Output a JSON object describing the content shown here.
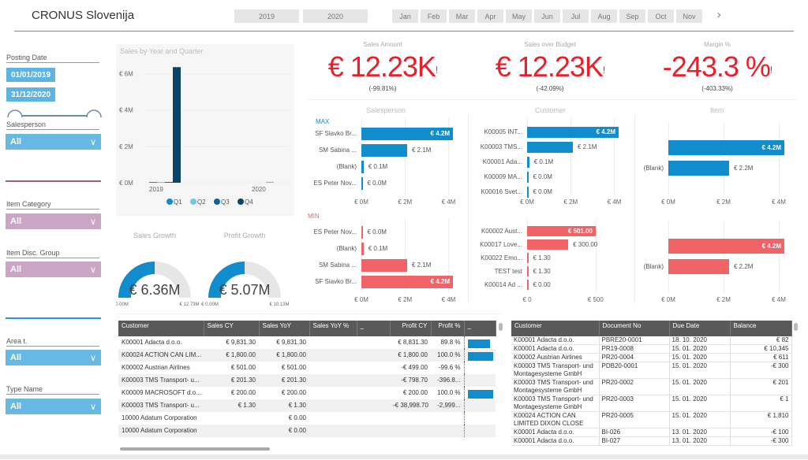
{
  "header": {
    "title": "CRONUS Slovenija",
    "years": [
      "2019",
      "2020"
    ],
    "months": [
      "Jan",
      "Feb",
      "Mar",
      "Apr",
      "May",
      "Jun",
      "Jul",
      "Aug",
      "Sep",
      "Oct",
      "Nov"
    ],
    "next_icon": "chevron-right-icon"
  },
  "filters": {
    "posting_date_label": "Posting Date",
    "date_from": "01/01/2019",
    "date_to": "31/12/2020",
    "salesperson_label": "Salesperson",
    "salesperson_value": "All",
    "item_category_label": "Item Category",
    "item_category_value": "All",
    "item_disc_group_label": "Item Disc. Group",
    "item_disc_group_value": "All",
    "area_label": "Area t.",
    "area_value": "All",
    "type_name_label": "Type Name",
    "type_name_value": "All"
  },
  "colors": {
    "accent_blue": "#118dce",
    "accent_red": "#f06468",
    "kpi_red": "#e8202a",
    "slicer_blue": "#66b9e2",
    "slicer_pink": "#cba5c4"
  },
  "chart_data": [
    {
      "type": "bar",
      "title": "Sales by Year and Quarter",
      "categories": [
        "2019",
        "2020"
      ],
      "series": [
        {
          "name": "Q1",
          "values": [
            0.03,
            0.0
          ]
        },
        {
          "name": "Q2",
          "values": [
            0.03,
            0.05
          ]
        },
        {
          "name": "Q3",
          "values": [
            0.03,
            0.0
          ]
        },
        {
          "name": "Q4",
          "values": [
            6.36,
            0.0
          ]
        }
      ],
      "yticks": [
        "€ 0M",
        "€ 2M",
        "€ 4M",
        "€ 6M"
      ],
      "ylim": [
        0,
        6.5
      ],
      "legend": [
        "Q1",
        "Q2",
        "Q3",
        "Q4"
      ],
      "legend_position": "bottom"
    },
    {
      "type": "bar",
      "title": "Salesperson",
      "subtitle": "MAX",
      "categories": [
        "SF Slavko Br...",
        "SM Sabina ...",
        "(Blank)",
        "ES Peter Nov..."
      ],
      "values": [
        4.2,
        2.1,
        0.1,
        0.0
      ],
      "labels": [
        "€ 4.2M",
        "€ 2.1M",
        "€ 0.1M",
        "€ 0.0M"
      ],
      "xticks": [
        "€ 0M",
        "€ 2M",
        "€ 4M"
      ],
      "xlim": [
        0,
        4.2
      ]
    },
    {
      "type": "bar",
      "title": "Salesperson MIN",
      "subtitle": "MIN",
      "categories": [
        "ES Peter Nov...",
        "(Blank)",
        "SM Sabina ...",
        "SF Slavko Br..."
      ],
      "values": [
        0.0,
        0.1,
        2.1,
        4.2
      ],
      "labels": [
        "€ 0.0M",
        "€ 0.1M",
        "€ 2.1M",
        "€ 4.2M"
      ],
      "xticks": [
        "€ 0M",
        "€ 2M",
        "€ 4M"
      ],
      "xlim": [
        0,
        4.2
      ]
    },
    {
      "type": "bar",
      "title": "Customer",
      "categories": [
        "K00005 INT...",
        "K00003 TMS...",
        "K00001 Ada...",
        "K00009 MA...",
        "K00016 Svet..."
      ],
      "values": [
        4.2,
        2.1,
        0.1,
        0.0,
        0.0
      ],
      "labels": [
        "€ 4.2M",
        "€ 2.1M",
        "€ 0.1M",
        "€ 0.0M",
        "€ 0.0M"
      ],
      "xticks": [
        "€ 0M",
        "€ 2M",
        "€ 4M"
      ],
      "xlim": [
        0,
        4.2
      ]
    },
    {
      "type": "bar",
      "title": "Customer MIN",
      "categories": [
        "K00002 Aust...",
        "K00017 Love...",
        "K00022 Emo...",
        "TEST test",
        "K00014 Ad ..."
      ],
      "values": [
        501.0,
        300.0,
        1.3,
        1.3,
        0.0
      ],
      "labels": [
        "€ 501.00",
        "€ 300.00",
        "€ 1.30",
        "€ 1.30",
        "€ 0.00"
      ],
      "xticks": [
        "€ 0",
        "€ 500"
      ],
      "xlim": [
        0,
        501
      ]
    },
    {
      "type": "bar",
      "title": "Item",
      "categories": [
        "",
        "(Blank)"
      ],
      "values": [
        4.2,
        2.2
      ],
      "labels": [
        "€ 4.2M",
        "€ 2.2M"
      ],
      "xticks": [
        "€ 0M",
        "€ 2M",
        "€ 4M"
      ],
      "xlim": [
        0,
        4.2
      ]
    },
    {
      "type": "bar",
      "title": "Item MIN",
      "categories": [
        "",
        "(Blank)"
      ],
      "values": [
        4.2,
        2.2
      ],
      "labels": [
        "€ 4.2M",
        "€ 2.2M"
      ],
      "xticks": [
        "€ 0M",
        "€ 2M",
        "€ 4M"
      ],
      "xlim": [
        0,
        4.2
      ]
    }
  ],
  "kpis": [
    {
      "title": "Sales Amount",
      "value": "€ 12.23K",
      "flag": "!",
      "sub": "(-99.81%)"
    },
    {
      "title": "Sales over Budget",
      "value": "€ 12.23K",
      "flag": "!",
      "sub": "(-42.09%)"
    },
    {
      "title": "Margin %",
      "value": "-243.3 %",
      "flag": "!",
      "sub": "(-403.33%)"
    }
  ],
  "gauges": [
    {
      "title": "Sales Growth",
      "value": "€ 6.36M",
      "min": "€ 0.00M",
      "max": "€ 12.73M",
      "fraction": 0.5
    },
    {
      "title": "Profit Growth",
      "value": "€ 5.07M",
      "min": "€ 0.00M",
      "max": "€ 10.13M",
      "fraction": 0.5
    }
  ],
  "sales_table": {
    "columns": [
      "Customer",
      "Sales CY",
      "Sales YoY",
      "Sales YoY %",
      "_",
      "Profit CY",
      "Profit %",
      "_"
    ],
    "rows": [
      {
        "customer": "K00001 Adacta d.o.o.",
        "sales_cy": "€ 9,831.30",
        "sales_yoy": "€ 9,831.30",
        "sales_yoy_pct": "",
        "profit_cy": "€ 8,831.30",
        "profit_pct": "89.8 %",
        "bar": 0.898
      },
      {
        "customer": "K00024 ACTION CAN LIM...",
        "sales_cy": "€ 1,800.00",
        "sales_yoy": "€ 1,800.00",
        "sales_yoy_pct": "",
        "profit_cy": "€ 1,800.00",
        "profit_pct": "100.0 %",
        "bar": 1.0
      },
      {
        "customer": "K00002 Austrian Airlines",
        "sales_cy": "€ 501.00",
        "sales_yoy": "€ 501.00",
        "sales_yoy_pct": "",
        "profit_cy": "-€ 499.00",
        "profit_pct": "-99.6 %",
        "bar": 0
      },
      {
        "customer": "K00003 TMS Transport- u...",
        "sales_cy": "€ 201.30",
        "sales_yoy": "€ 201.30",
        "sales_yoy_pct": "",
        "profit_cy": "-€ 798.70",
        "profit_pct": "-396.8...",
        "bar": 0
      },
      {
        "customer": "K00009 MACROSOFT d.o....",
        "sales_cy": "€ 200.00",
        "sales_yoy": "€ 200.00",
        "sales_yoy_pct": "",
        "profit_cy": "€ 200.00",
        "profit_pct": "100.0 %",
        "bar": 1.0
      },
      {
        "customer": "K00003 TMS Transport- u...",
        "sales_cy": "€ 1.30",
        "sales_yoy": "€ 1.30",
        "sales_yoy_pct": "",
        "profit_cy": "-€ 38,998.70",
        "profit_pct": "-2,999...",
        "bar": 0
      },
      {
        "customer": "10000 Adatum Corporation",
        "sales_cy": "",
        "sales_yoy": "€ 0.00",
        "sales_yoy_pct": "",
        "profit_cy": "",
        "profit_pct": "",
        "bar": 0
      },
      {
        "customer": "10000 Adatum Corporation",
        "sales_cy": "",
        "sales_yoy": "€ 0.00",
        "sales_yoy_pct": "",
        "profit_cy": "",
        "profit_pct": "",
        "bar": 0
      }
    ]
  },
  "docs_table": {
    "columns": [
      "Customer",
      "Document No",
      "Due Date",
      "Balance"
    ],
    "rows": [
      {
        "customer": "K00001 Adacta d.o.o.",
        "doc": "PBRE20-0001",
        "due": "18. 10. 2020",
        "balance": "€ 82"
      },
      {
        "customer": "K00001 Adacta d.o.o.",
        "doc": "PR19-0008",
        "due": "15. 01. 2020",
        "balance": "€ 10,345"
      },
      {
        "customer": "K00002 Austrian Airlines",
        "doc": "PR20-0004",
        "due": "15. 01. 2020",
        "balance": "€ 611"
      },
      {
        "customer": "K00003 TMS Transport- und Montagesysteme GmbH",
        "doc": "PDB20-0001",
        "due": "15. 01. 2020",
        "balance": "-€ 300"
      },
      {
        "customer": "K00003 TMS Transport- und Montagesysteme GmbH",
        "doc": "PR20-0002",
        "due": "15. 01. 2020",
        "balance": "€ 201"
      },
      {
        "customer": "K00003 TMS Transport- und Montagesysteme GmbH",
        "doc": "PR20-0003",
        "due": "15. 01. 2020",
        "balance": "€ 1"
      },
      {
        "customer": "K00024 ACTION CAN LIMITED DIXON CLOSE",
        "doc": "PR20-0005",
        "due": "15. 01. 2020",
        "balance": "€ 1,810"
      },
      {
        "customer": "K00001 Adacta d.o.o.",
        "doc": "BI-026",
        "due": "13. 01. 2020",
        "balance": "-€ 100"
      },
      {
        "customer": "K00001 Adacta d.o.o.",
        "doc": "BI-027",
        "due": "13. 01. 2020",
        "balance": "-€ 300"
      }
    ]
  }
}
